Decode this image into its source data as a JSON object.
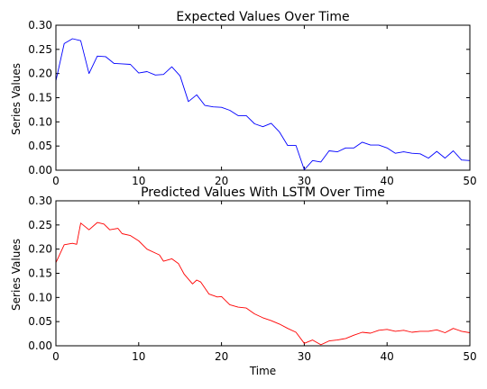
{
  "chart_data": [
    {
      "type": "line",
      "title": "Expected Values Over Time",
      "xlabel": "",
      "ylabel": "Series Values",
      "xlim": [
        0,
        50
      ],
      "ylim": [
        0.0,
        0.3
      ],
      "xticks": [
        0,
        10,
        20,
        30,
        40,
        50
      ],
      "yticks": [
        0.0,
        0.05,
        0.1,
        0.15,
        0.2,
        0.25,
        0.3
      ],
      "xtick_labels": [
        "0",
        "10",
        "20",
        "30",
        "40",
        "50"
      ],
      "ytick_labels": [
        "0.00",
        "0.05",
        "0.10",
        "0.15",
        "0.20",
        "0.25",
        "0.30"
      ],
      "grid": false,
      "series": [
        {
          "color": "#0000ff",
          "x": [
            0,
            1,
            2,
            3,
            4,
            5,
            6,
            7,
            8,
            9,
            10,
            11,
            12,
            13,
            14,
            15,
            16,
            17,
            18,
            19,
            20,
            21,
            22,
            23,
            24,
            25,
            26,
            27,
            28,
            29,
            30,
            31,
            32,
            33,
            34,
            35,
            36,
            37,
            38,
            39,
            40,
            41,
            42,
            43,
            44,
            45,
            46,
            47,
            48,
            49,
            50
          ],
          "values": [
            0.185,
            0.262,
            0.272,
            0.268,
            0.2,
            0.236,
            0.235,
            0.221,
            0.22,
            0.219,
            0.201,
            0.204,
            0.197,
            0.198,
            0.214,
            0.195,
            0.142,
            0.156,
            0.134,
            0.131,
            0.13,
            0.124,
            0.113,
            0.113,
            0.096,
            0.09,
            0.097,
            0.079,
            0.051,
            0.051,
            0.001,
            0.02,
            0.017,
            0.04,
            0.038,
            0.046,
            0.046,
            0.058,
            0.052,
            0.052,
            0.046,
            0.035,
            0.038,
            0.035,
            0.034,
            0.025,
            0.039,
            0.025,
            0.04,
            0.021,
            0.02
          ]
        }
      ]
    },
    {
      "type": "line",
      "title": "Predicted Values With LSTM Over Time",
      "xlabel": "Time",
      "ylabel": "Series Values",
      "xlim": [
        0,
        50
      ],
      "ylim": [
        0.0,
        0.3
      ],
      "xticks": [
        0,
        10,
        20,
        30,
        40,
        50
      ],
      "yticks": [
        0.0,
        0.05,
        0.1,
        0.15,
        0.2,
        0.25,
        0.3
      ],
      "xtick_labels": [
        "0",
        "10",
        "20",
        "30",
        "40",
        "50"
      ],
      "ytick_labels": [
        "0.00",
        "0.05",
        "0.10",
        "0.15",
        "0.20",
        "0.25",
        "0.30"
      ],
      "grid": false,
      "series": [
        {
          "color": "#ff0000",
          "x": [
            0,
            1,
            2,
            2.5,
            3,
            4,
            5,
            5.8,
            6.5,
            7.5,
            8,
            9,
            10,
            11,
            12,
            12.5,
            13,
            14,
            14.8,
            15.5,
            16.5,
            17,
            17.5,
            18.5,
            19.5,
            20,
            21,
            22,
            23,
            24,
            25,
            26,
            27,
            28,
            29,
            30,
            31,
            32,
            33,
            34,
            35,
            36,
            37,
            38,
            39,
            40,
            41,
            42,
            43,
            44,
            45,
            46,
            47,
            48,
            49,
            50
          ],
          "values": [
            0.172,
            0.209,
            0.212,
            0.21,
            0.254,
            0.24,
            0.255,
            0.252,
            0.24,
            0.243,
            0.232,
            0.228,
            0.217,
            0.2,
            0.192,
            0.188,
            0.175,
            0.18,
            0.17,
            0.148,
            0.128,
            0.136,
            0.132,
            0.107,
            0.101,
            0.102,
            0.085,
            0.08,
            0.078,
            0.066,
            0.058,
            0.052,
            0.045,
            0.036,
            0.028,
            0.005,
            0.012,
            0.002,
            0.01,
            0.012,
            0.015,
            0.022,
            0.028,
            0.026,
            0.032,
            0.034,
            0.03,
            0.032,
            0.028,
            0.03,
            0.03,
            0.033,
            0.027,
            0.036,
            0.03,
            0.027
          ]
        }
      ]
    }
  ]
}
